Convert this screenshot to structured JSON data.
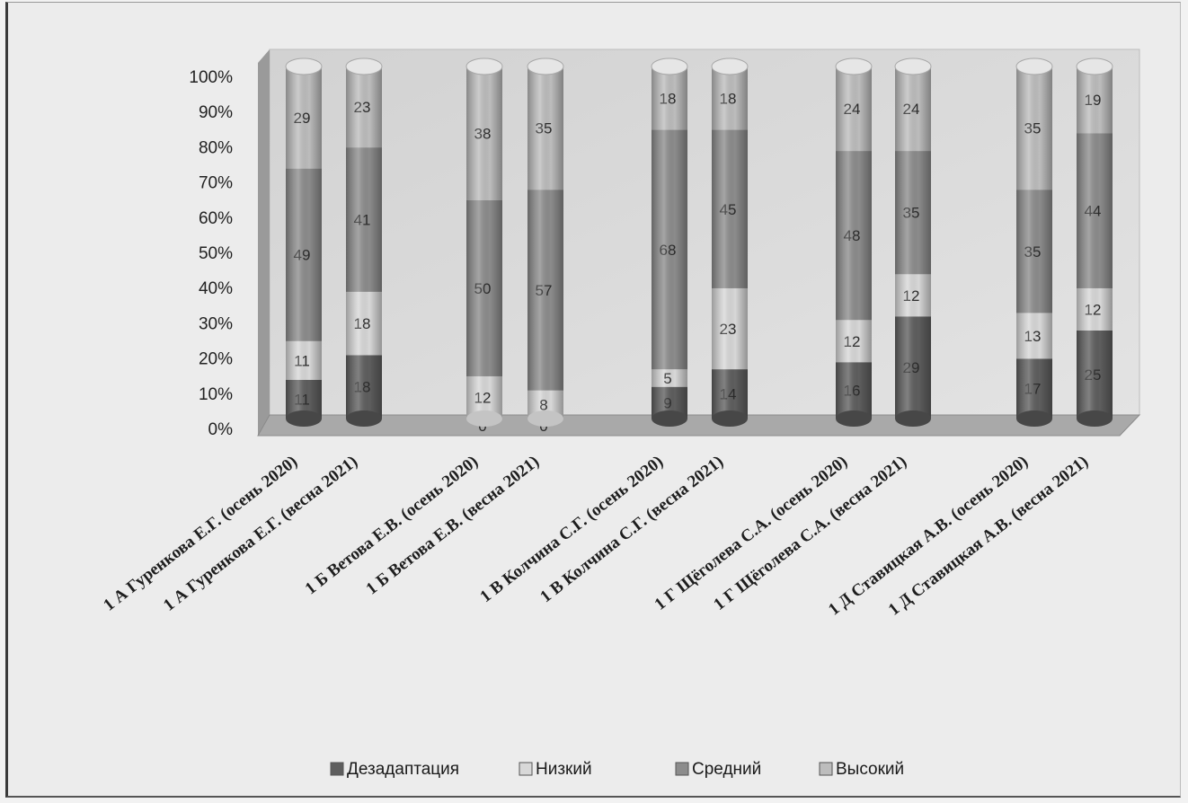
{
  "chart_data": {
    "type": "bar",
    "stacked": true,
    "percent_stacked": true,
    "style": "3d-cylinder",
    "title": "",
    "xlabel": "",
    "ylabel": "",
    "ylim": [
      0,
      100
    ],
    "y_ticks": [
      "0%",
      "10%",
      "20%",
      "30%",
      "40%",
      "50%",
      "60%",
      "70%",
      "80%",
      "90%",
      "100%"
    ],
    "grid": false,
    "legend_position": "bottom",
    "categories": [
      "1 А Гуренкова Е.Г. (осень 2020)",
      "1 А Гуренкова Е.Г. (весна 2021)",
      "1 Б Ветова Е.В. (осень 2020)",
      "1 Б Ветова Е.В. (весна 2021)",
      "1 В Колчина С.Г. (осень 2020)",
      "1 В Колчина С.Г. (весна 2021)",
      "1 Г Щёголева С.А. (осень 2020)",
      "1 Г Щёголева С.А. (весна 2021)",
      "1 Д Ставицкая А.В. (осень 2020)",
      "1 Д Ставицкая А.В. (весна 2021)"
    ],
    "series": [
      {
        "name": "Дезадаптация",
        "color": "#5e5e5e",
        "values": [
          11,
          18,
          0,
          0,
          9,
          14,
          16,
          29,
          17,
          25
        ],
        "labels": [
          "11",
          "18",
          "0",
          "0",
          "9",
          "14",
          "16",
          "29",
          "17",
          "25"
        ]
      },
      {
        "name": "Низкий",
        "color": "#d8d8d8",
        "values": [
          11,
          18,
          12,
          8,
          5,
          23,
          12,
          12,
          13,
          12
        ],
        "labels": [
          "11",
          "18",
          "12",
          "8",
          "5",
          "23",
          "12",
          "12",
          "13",
          "12"
        ]
      },
      {
        "name": "Средний",
        "color": "#8c8c8c",
        "values": [
          49,
          41,
          50,
          57,
          68,
          45,
          48,
          35,
          35,
          44
        ],
        "labels": [
          "49",
          "41",
          "50",
          "57",
          "68",
          "45",
          "48",
          "35",
          "35",
          "44"
        ]
      },
      {
        "name": "Высокий",
        "color": "#bdbdbd",
        "values": [
          29,
          23,
          38,
          35,
          18,
          18,
          24,
          24,
          35,
          19
        ],
        "labels": [
          "29",
          "23",
          "38",
          "35",
          "18",
          "18",
          "24",
          "24",
          "35",
          "19"
        ]
      }
    ]
  }
}
